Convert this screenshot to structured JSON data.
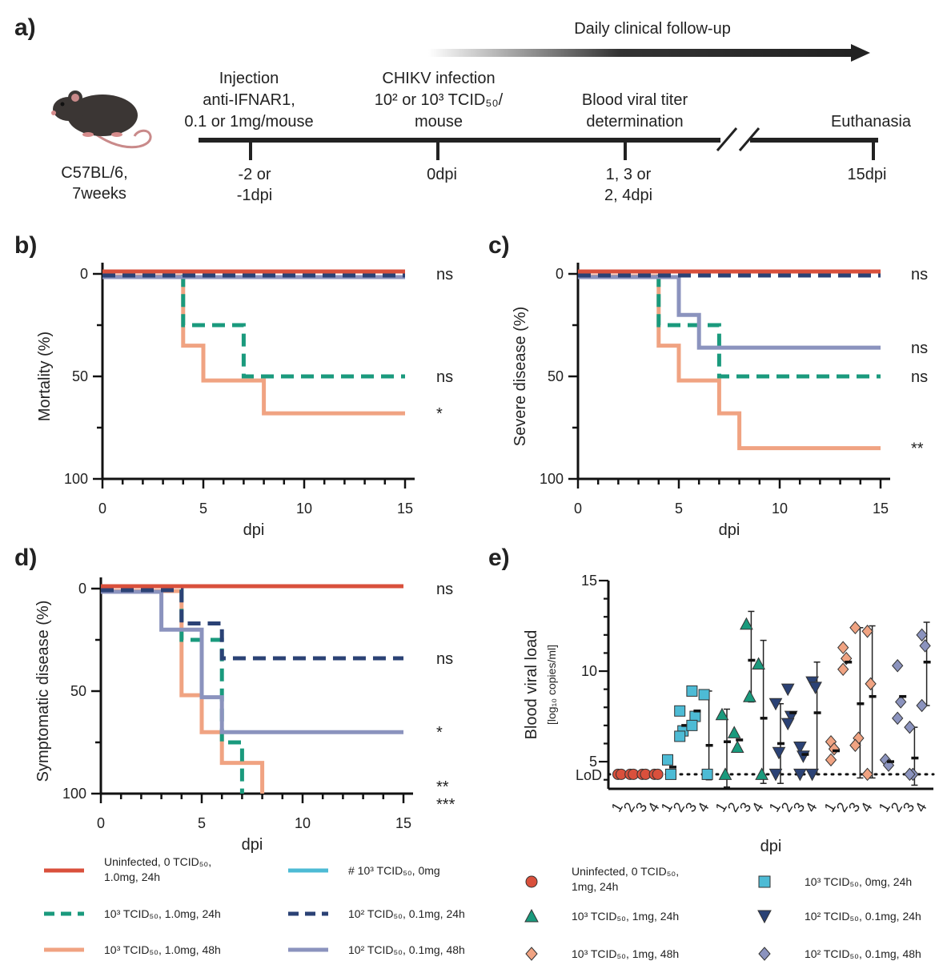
{
  "panels": {
    "a": "a)",
    "b": "b)",
    "c": "c)",
    "d": "d)",
    "e": "e)"
  },
  "colors": {
    "uninfected": "#d9503c",
    "c103_1mg_24h": "#1a9a7d",
    "c103_1mg_48h": "#f0a382",
    "c103_0mg": "#4dbbd5",
    "c102_01mg_24h": "#2b4275",
    "c102_01mg_48h": "#8b93be"
  },
  "timeline": {
    "followup": "Daily clinical follow-up",
    "mouse_label": [
      "C57BL/6,",
      "7weeks"
    ],
    "events": [
      {
        "top": [
          "Injection",
          "anti-IFNAR1,",
          "0.1 or 1mg/mouse"
        ],
        "bottom": [
          "-2 or",
          "-1dpi"
        ]
      },
      {
        "top": [
          "CHIKV infection",
          "10² or 10³ TCID₅₀/",
          "mouse"
        ],
        "bottom": [
          "0dpi"
        ]
      },
      {
        "top": [
          "Blood viral titer",
          "determination"
        ],
        "bottom": [
          "1, 3 or",
          "2, 4dpi"
        ]
      },
      {
        "top": [
          "Euthanasia"
        ],
        "bottom": [
          "15dpi"
        ]
      }
    ]
  },
  "chart_data": [
    {
      "panel": "b",
      "type": "line",
      "step": true,
      "xlabel": "dpi",
      "ylabel": "Mortality (%)",
      "xlim": [
        0,
        15
      ],
      "ylim": [
        0,
        100
      ],
      "y_inverted": true,
      "xticks": [
        0,
        5,
        10,
        15
      ],
      "yticks": [
        0,
        50,
        100
      ],
      "series": [
        {
          "key": "uninfected",
          "style": "solid",
          "x": [
            0,
            15
          ],
          "y": [
            0,
            0
          ],
          "sig": "ns"
        },
        {
          "key": "c102_01mg_24h",
          "style": "dashed",
          "x": [
            0,
            15
          ],
          "y": [
            0,
            0
          ],
          "sig": ""
        },
        {
          "key": "c102_01mg_48h",
          "style": "solid",
          "x": [
            0,
            15
          ],
          "y": [
            0,
            0
          ],
          "sig": ""
        },
        {
          "key": "c103_1mg_24h",
          "style": "dashed",
          "x": [
            0,
            4,
            7,
            15
          ],
          "y": [
            0,
            25,
            50,
            50
          ],
          "sig": "ns"
        },
        {
          "key": "c103_1mg_48h",
          "style": "solid",
          "x": [
            0,
            4,
            5,
            8,
            15
          ],
          "y": [
            0,
            35,
            52,
            68,
            68
          ],
          "sig": "*"
        }
      ]
    },
    {
      "panel": "c",
      "type": "line",
      "step": true,
      "xlabel": "dpi",
      "ylabel": "Severe disease (%)",
      "xlim": [
        0,
        15
      ],
      "ylim": [
        0,
        100
      ],
      "y_inverted": true,
      "xticks": [
        0,
        5,
        10,
        15
      ],
      "yticks": [
        0,
        50,
        100
      ],
      "series": [
        {
          "key": "uninfected",
          "style": "solid",
          "x": [
            0,
            15
          ],
          "y": [
            0,
            0
          ],
          "sig": "ns"
        },
        {
          "key": "c102_01mg_24h",
          "style": "dashed",
          "x": [
            0,
            15
          ],
          "y": [
            0,
            0
          ],
          "sig": ""
        },
        {
          "key": "c102_01mg_48h",
          "style": "solid",
          "x": [
            0,
            5,
            6,
            15
          ],
          "y": [
            0,
            20,
            36,
            36
          ],
          "sig": "ns"
        },
        {
          "key": "c103_1mg_24h",
          "style": "dashed",
          "x": [
            0,
            4,
            7,
            15
          ],
          "y": [
            0,
            25,
            50,
            50
          ],
          "sig": "ns"
        },
        {
          "key": "c103_1mg_48h",
          "style": "solid",
          "x": [
            0,
            4,
            5,
            7,
            8,
            15
          ],
          "y": [
            0,
            35,
            52,
            68,
            85,
            85
          ],
          "sig": "**"
        }
      ]
    },
    {
      "panel": "d",
      "type": "line",
      "step": true,
      "xlabel": "dpi",
      "ylabel": "Symptomatic disease (%)",
      "xlim": [
        0,
        15
      ],
      "ylim": [
        0,
        100
      ],
      "y_inverted": true,
      "xticks": [
        0,
        5,
        10,
        15
      ],
      "yticks": [
        0,
        50,
        100
      ],
      "series": [
        {
          "key": "uninfected",
          "style": "solid",
          "x": [
            0,
            15
          ],
          "y": [
            0,
            0
          ],
          "sig": "ns"
        },
        {
          "key": "c102_01mg_24h",
          "style": "dashed",
          "x": [
            0,
            4,
            6,
            15
          ],
          "y": [
            0,
            17,
            34,
            34
          ],
          "sig": "ns"
        },
        {
          "key": "c102_01mg_48h",
          "style": "solid",
          "x": [
            0,
            3,
            5,
            6,
            15
          ],
          "y": [
            0,
            20,
            53,
            70,
            70
          ],
          "sig": "*"
        },
        {
          "key": "c103_1mg_24h",
          "style": "dashed",
          "x": [
            0,
            4,
            6,
            7
          ],
          "y": [
            0,
            25,
            75,
            100
          ],
          "sig": "**"
        },
        {
          "key": "c103_1mg_48h",
          "style": "solid",
          "x": [
            0,
            4,
            5,
            6,
            8
          ],
          "y": [
            0,
            52,
            70,
            85,
            100
          ],
          "sig": "***"
        }
      ]
    },
    {
      "panel": "e",
      "type": "scatter",
      "xlabel": "dpi",
      "ylabel": "Blood viral load",
      "ylabel_sub": "[log₁₀ copies/ml]",
      "ylim": [
        3.5,
        15
      ],
      "yticks": [
        5,
        10,
        15
      ],
      "lod": 4.3,
      "lod_label": "LoD",
      "day_labels": [
        "1",
        "2",
        "3",
        "4"
      ],
      "groups": [
        {
          "key": "uninfected",
          "marker": "circle",
          "days": [
            {
              "day": 1,
              "points": [
                4.3,
                4.3
              ],
              "mean": 4.3
            },
            {
              "day": 2,
              "points": [
                4.3,
                4.3
              ],
              "mean": 4.3
            },
            {
              "day": 3,
              "points": [
                4.3,
                4.3
              ],
              "mean": 4.3
            },
            {
              "day": 4,
              "points": [
                4.3,
                4.3
              ],
              "mean": 4.3
            }
          ]
        },
        {
          "key": "c103_0mg",
          "marker": "square",
          "days": [
            {
              "day": 1,
              "points": [
                5.1,
                4.3
              ],
              "mean": 4.7
            },
            {
              "day": 2,
              "points": [
                7.8,
                6.7,
                6.4
              ],
              "mean": 7.0
            },
            {
              "day": 3,
              "points": [
                8.9,
                7.5,
                7.0
              ],
              "mean": 7.8
            },
            {
              "day": 4,
              "points": [
                8.7,
                4.3
              ],
              "mean": 5.9,
              "err": [
                4.0,
                8.9
              ]
            }
          ]
        },
        {
          "key": "c103_1mg_24h",
          "marker": "triangle-up",
          "days": [
            {
              "day": 1,
              "points": [
                7.6,
                4.3
              ],
              "mean": 6.1,
              "err": [
                3.6,
                7.9
              ]
            },
            {
              "day": 2,
              "points": [
                6.6,
                5.8
              ],
              "mean": 6.2
            },
            {
              "day": 3,
              "points": [
                12.6,
                8.6
              ],
              "mean": 10.6,
              "err": [
                8.3,
                13.3
              ]
            },
            {
              "day": 4,
              "points": [
                10.4,
                4.3
              ],
              "mean": 7.4,
              "err": [
                3.8,
                11.7
              ]
            }
          ]
        },
        {
          "key": "c102_01mg_24h",
          "marker": "triangle-down",
          "days": [
            {
              "day": 1,
              "points": [
                8.2,
                5.5,
                4.3
              ],
              "mean": 6.0,
              "err": [
                3.8,
                8.2
              ]
            },
            {
              "day": 2,
              "points": [
                9.0,
                7.5,
                7.1
              ],
              "mean": 7.7
            },
            {
              "day": 3,
              "points": [
                5.8,
                5.3,
                4.3
              ],
              "mean": 5.4
            },
            {
              "day": 4,
              "points": [
                9.4,
                9.1,
                4.3
              ],
              "mean": 7.7,
              "err": [
                4.3,
                10.5
              ]
            }
          ]
        },
        {
          "key": "c103_1mg_48h",
          "marker": "diamond",
          "days": [
            {
              "day": 1,
              "points": [
                6.1,
                5.7,
                5.1
              ],
              "mean": 5.6
            },
            {
              "day": 2,
              "points": [
                11.3,
                10.7,
                10.1
              ],
              "mean": 10.5
            },
            {
              "day": 3,
              "points": [
                12.4,
                6.3,
                5.9
              ],
              "mean": 8.2,
              "err": [
                4.1,
                12.4
              ]
            },
            {
              "day": 4,
              "points": [
                12.2,
                9.3,
                4.3
              ],
              "mean": 8.6,
              "err": [
                4.1,
                12.5
              ]
            }
          ]
        },
        {
          "key": "c102_01mg_48h",
          "marker": "diamond",
          "days": [
            {
              "day": 1,
              "points": [
                5.1,
                4.8
              ],
              "mean": 5.0
            },
            {
              "day": 2,
              "points": [
                10.3,
                8.3,
                7.4
              ],
              "mean": 8.6
            },
            {
              "day": 3,
              "points": [
                6.9,
                4.3,
                4.3
              ],
              "mean": 5.2,
              "err": [
                3.7,
                6.9
              ]
            },
            {
              "day": 4,
              "points": [
                12.0,
                11.4,
                8.1
              ],
              "mean": 10.5,
              "err": [
                8.1,
                12.7
              ]
            }
          ]
        }
      ]
    }
  ],
  "legend_lines": [
    {
      "key": "uninfected",
      "style": "solid",
      "lines": [
        "Uninfected, 0 TCID₅₀,",
        "1.0mg, 24h"
      ]
    },
    {
      "key": "c103_1mg_24h",
      "style": "dashed",
      "lines": [
        "10³ TCID₅₀, 1.0mg, 24h"
      ]
    },
    {
      "key": "c103_1mg_48h",
      "style": "solid",
      "lines": [
        "10³ TCID₅₀, 1.0mg, 48h"
      ]
    },
    {
      "key": "c103_0mg",
      "style": "solid",
      "lines": [
        "# 10³ TCID₅₀, 0mg"
      ]
    },
    {
      "key": "c102_01mg_24h",
      "style": "dashed",
      "lines": [
        "10² TCID₅₀, 0.1mg, 24h"
      ]
    },
    {
      "key": "c102_01mg_48h",
      "style": "solid",
      "lines": [
        "10² TCID₅₀, 0.1mg, 48h"
      ]
    }
  ],
  "legend_markers": [
    {
      "key": "uninfected",
      "marker": "circle",
      "lines": [
        "Uninfected, 0 TCID₅₀,",
        "1mg, 24h"
      ]
    },
    {
      "key": "c103_1mg_24h",
      "marker": "triangle-up",
      "lines": [
        "10³ TCID₅₀, 1mg, 24h"
      ]
    },
    {
      "key": "c103_1mg_48h",
      "marker": "diamond",
      "lines": [
        "10³ TCID₅₀, 1mg, 48h"
      ]
    },
    {
      "key": "c103_0mg",
      "marker": "square",
      "lines": [
        "10³ TCID₅₀, 0mg, 24h"
      ]
    },
    {
      "key": "c102_01mg_24h",
      "marker": "triangle-down",
      "lines": [
        "10² TCID₅₀, 0.1mg, 24h"
      ]
    },
    {
      "key": "c102_01mg_48h",
      "marker": "diamond",
      "lines": [
        "10² TCID₅₀, 0.1mg, 48h"
      ]
    }
  ]
}
